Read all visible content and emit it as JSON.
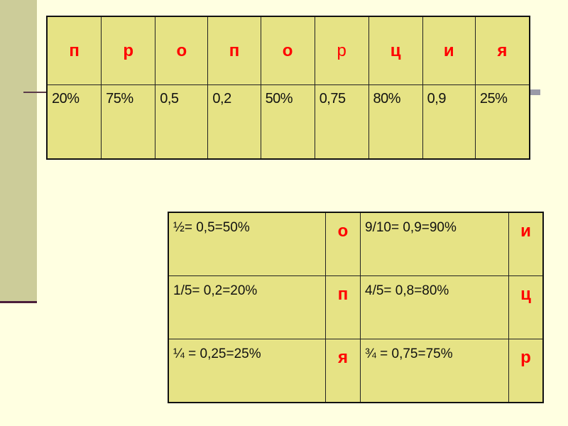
{
  "colors": {
    "background": "#FFFFE1",
    "cell": "#E6E385",
    "letter": "#FF0000",
    "sidebar": "#CCCC99"
  },
  "top_table": {
    "letters": [
      "п",
      "р",
      "о",
      "п",
      "о",
      "р",
      "ц",
      "и",
      "я"
    ],
    "values": [
      "20%",
      "75%",
      "0,5",
      "0,2",
      "50%",
      "0,75",
      "80%",
      "0,9",
      "25%"
    ]
  },
  "bottom_table": {
    "rows": [
      {
        "left_expr": "½= 0,5=50%",
        "left_letter": "о",
        "right_expr": "9/10= 0,9=90%",
        "right_letter": "и"
      },
      {
        "left_expr": "1/5= 0,2=20%",
        "left_letter": "п",
        "right_expr": "4/5= 0,8=80%",
        "right_letter": "ц"
      },
      {
        "left_expr": "¼ = 0,25=25%",
        "left_letter": "я",
        "right_expr": "¾ = 0,75=75%",
        "right_letter": "р"
      }
    ]
  }
}
